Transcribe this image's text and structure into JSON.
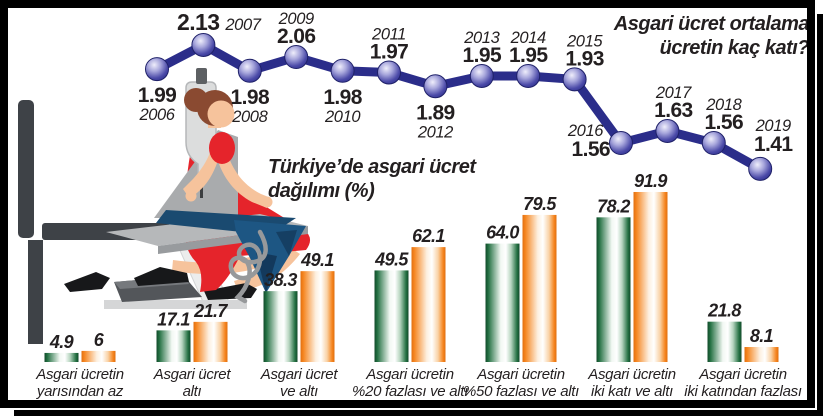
{
  "page": {
    "background": "#ffffff",
    "frame_color": "#000000",
    "text_color": "#231f20"
  },
  "line_section": {
    "title": "Asgari ücret ortalama\nücretin kaç katı?"
  },
  "bar_section": {
    "title": "Türkiye’de asgari ücret\ndağılımı (%)"
  },
  "chart_data": [
    {
      "type": "line",
      "title": "Asgari ücret ortalama ücretin kaç katı?",
      "x": [
        "2006",
        "2007",
        "2008",
        "2009",
        "2010",
        "2011",
        "2012",
        "2013",
        "2014",
        "2015",
        "2016",
        "2017",
        "2018",
        "2019"
      ],
      "values": [
        1.99,
        2.13,
        1.98,
        2.06,
        1.98,
        1.97,
        1.89,
        1.95,
        1.95,
        1.93,
        1.56,
        1.63,
        1.56,
        1.41
      ],
      "value_labels": [
        "1.99",
        "2.13",
        "1.98",
        "2.06",
        "1.98",
        "1.97",
        "1.89",
        "1.95",
        "1.95",
        "1.93",
        "1.56",
        "1.63",
        "1.56",
        "1.41"
      ],
      "line_color": "#2b2d8a",
      "marker_style": "sphere",
      "ylim": [
        1.3,
        2.2
      ],
      "grid": false,
      "legend": "none"
    },
    {
      "type": "bar",
      "title": "Türkiye’de asgari ücret dağılımı (%)",
      "categories": [
        "Asgari ücretin\nyarısından az",
        "Asgari ücret\naltı",
        "Asgari ücret\nve altı",
        "Asgari ücretin\n%20 fazlası ve altı",
        "Asgari ücretin\n%50 fazlası ve altı",
        "Asgari ücretin\niki katı ve altı",
        "Asgari ücretin\niki katından fazlası"
      ],
      "series": [
        {
          "color": "#1d6b3d",
          "values": [
            4.9,
            17.1,
            38.3,
            49.5,
            64.0,
            78.2,
            21.8
          ],
          "value_labels": [
            "4.9",
            "17.1",
            "38.3",
            "49.5",
            "64.0",
            "78.2",
            "21.8"
          ]
        },
        {
          "color": "#f5851f",
          "values": [
            6,
            21.7,
            49.1,
            62.1,
            79.5,
            91.9,
            8.1
          ],
          "value_labels": [
            "6",
            "21.7",
            "49.1",
            "62.1",
            "79.5",
            "91.9",
            "8.1"
          ]
        }
      ],
      "ylim": [
        0,
        100
      ],
      "grid": false,
      "legend": "none"
    }
  ]
}
